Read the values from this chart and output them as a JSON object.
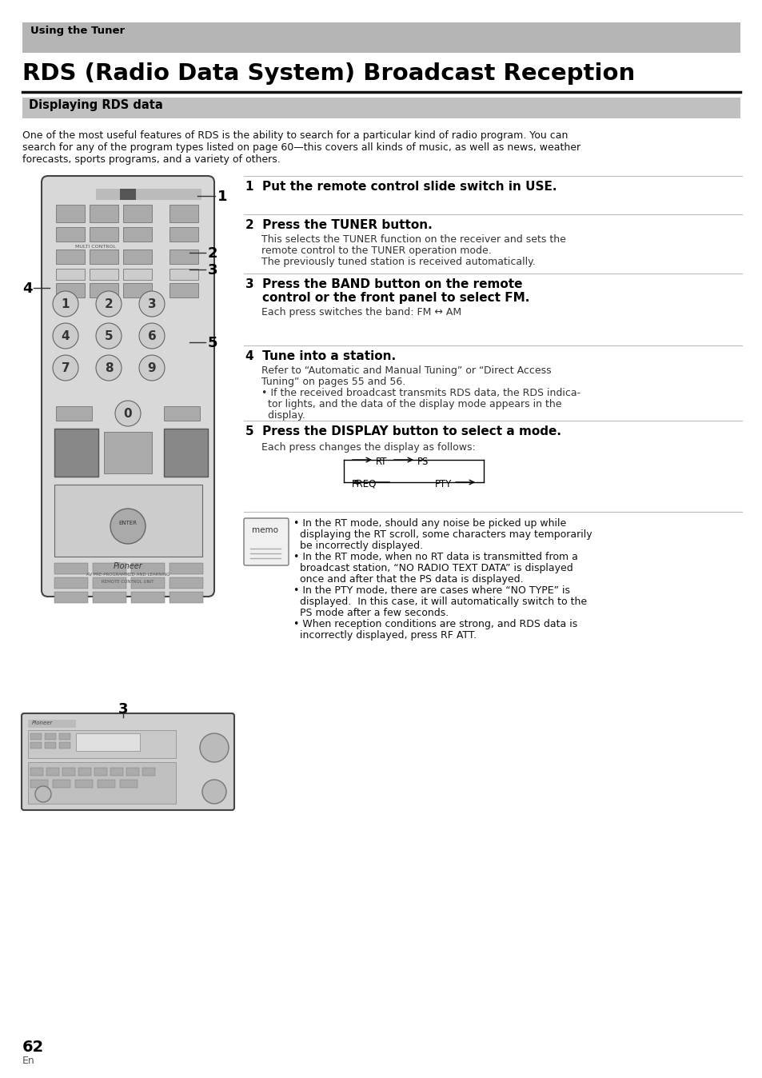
{
  "page_bg": "#ffffff",
  "top_banner_bg": "#b5b5b5",
  "top_banner_text": "Using the Tuner",
  "title": "RDS (Radio Data System) Broadcast Reception",
  "section_bg": "#c0c0c0",
  "section_text": "Displaying RDS data",
  "intro_line1": "One of the most useful features of RDS is the ability to search for a particular kind of radio program. You can",
  "intro_line2": "search for any of the program types listed on page 60—this covers all kinds of music, as well as news, weather",
  "intro_line3": "forecasts, sports programs, and a variety of others.",
  "step1_bold": "1  Put the remote control slide switch in USE.",
  "step2_bold": "2  Press the TUNER button.",
  "step2_b1": "This selects the TUNER function on the receiver and sets the",
  "step2_b2": "remote control to the TUNER operation mode.",
  "step2_b3": "The previously tuned station is received automatically.",
  "step3_bold1": "3  Press the BAND button on the remote",
  "step3_bold2": "    control or the front panel to select FM.",
  "step3_body": "Each press switches the band: FM ↔ AM",
  "step4_bold": "4  Tune into a station.",
  "step4_b1": "Refer to “Automatic and Manual Tuning” or “Direct Access",
  "step4_b2": "Tuning” on pages 55 and 56.",
  "step4_b3": "• If the received broadcast transmits RDS data, the RDS indica-",
  "step4_b4": "  tor lights, and the data of the display mode appears in the",
  "step4_b5": "  display.",
  "step5_bold": "5  Press the DISPLAY button to select a mode.",
  "step5_body": "Each press changes the display as follows:",
  "memo_line1": "• In the RT mode, should any noise be picked up while",
  "memo_line2": "  displaying the RT scroll, some characters may temporarily",
  "memo_line3": "  be incorrectly displayed.",
  "memo_line4": "• In the RT mode, when no RT data is transmitted from a",
  "memo_line5": "  broadcast station, “NO RADIO TEXT DATA” is displayed",
  "memo_line6": "  once and after that the PS data is displayed.",
  "memo_line7": "• In the PTY mode, there are cases where “NO TYPE” is",
  "memo_line8": "  displayed.  In this case, it will automatically switch to the",
  "memo_line9": "  PS mode after a few seconds.",
  "memo_line10": "• When reception conditions are strong, and RDS data is",
  "memo_line11": "  incorrectly displayed, press RF ATT.",
  "page_number": "62",
  "page_sub": "En",
  "label1": "1",
  "label2": "2",
  "label3": "3",
  "label4": "4",
  "label5": "5",
  "label3b": "3"
}
